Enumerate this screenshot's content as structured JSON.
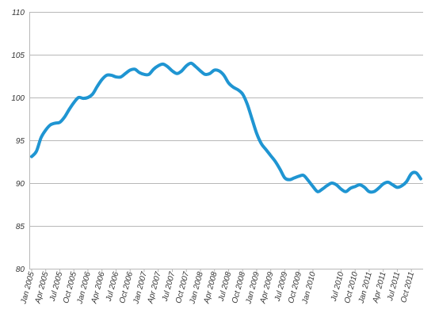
{
  "chart_data": {
    "type": "line",
    "title": "",
    "xlabel": "",
    "ylabel": "",
    "ylim": [
      80,
      110
    ],
    "yticks": [
      80,
      85,
      90,
      95,
      100,
      105,
      110
    ],
    "grid": true,
    "legend": "none",
    "colors": {
      "line": "#1f95d2",
      "grid": "#b8b8b8",
      "text": "#333333"
    },
    "x": [
      "Jan 2005",
      "Feb 2005",
      "Mar 2005",
      "Apr 2005",
      "May 2005",
      "Jun 2005",
      "Jul 2005",
      "Aug 2005",
      "Sep 2005",
      "Oct 2005",
      "Nov 2005",
      "Dec 2005",
      "Jan 2006",
      "Feb 2006",
      "Mar 2006",
      "Apr 2006",
      "May 2006",
      "Jun 2006",
      "Jul 2006",
      "Aug 2006",
      "Sep 2006",
      "Oct 2006",
      "Nov 2006",
      "Dec 2006",
      "Jan 2007",
      "Feb 2007",
      "Mar 2007",
      "Apr 2007",
      "May 2007",
      "Jun 2007",
      "Jul 2007",
      "Aug 2007",
      "Sep 2007",
      "Oct 2007",
      "Nov 2007",
      "Dec 2007",
      "Jan 2008",
      "Feb 2008",
      "Mar 2008",
      "Apr 2008",
      "May 2008",
      "Jun 2008",
      "Jul 2008",
      "Aug 2008",
      "Sep 2008",
      "Oct 2008",
      "Nov 2008",
      "Dec 2008",
      "Jan 2009",
      "Feb 2009",
      "Mar 2009",
      "Apr 2009",
      "May 2009",
      "Jun 2009",
      "Jul 2009",
      "Aug 2009",
      "Sep 2009",
      "Oct 2009",
      "Nov 2009",
      "Dec 2009",
      "Jan 2010",
      "Feb 2010",
      "Mar 2010",
      "Apr 2010",
      "May 2010",
      "Jun 2010",
      "Jul 2010",
      "Aug 2010",
      "Sep 2010",
      "Oct 2010",
      "Nov 2010",
      "Dec 2010",
      "Jan 2011",
      "Feb 2011",
      "Mar 2011",
      "Apr 2011",
      "May 2011",
      "Jun 2011",
      "Jul 2011",
      "Aug 2011",
      "Sep 2011",
      "Oct 2011",
      "Nov 2011",
      "Dec 2011"
    ],
    "xtick_labels": [
      "Jan 2005",
      "Apr 2005",
      "Jul 2005",
      "Oct 2005",
      "Jan 2006",
      "Apr 2006",
      "Jul 2006",
      "Oct 2006",
      "Jan 2007",
      "Apr 2007",
      "Jul 2007",
      "Oct 2007",
      "Jan 2008",
      "Apr 2008",
      "Jul 2008",
      "Oct 2008",
      "Jan 2009",
      "Apr 2009",
      "Jul 2009",
      "Oct 2009",
      "Jan 2010",
      "Jul 2010",
      "Oct 2010",
      "Jan 2011",
      "Apr 2011",
      "Jul 2011",
      "Oct 2011"
    ],
    "series": [
      {
        "values": [
          93.1,
          93.7,
          95.3,
          96.2,
          96.8,
          97.0,
          97.1,
          97.7,
          98.6,
          99.4,
          100.0,
          99.9,
          100.0,
          100.4,
          101.3,
          102.1,
          102.6,
          102.6,
          102.4,
          102.4,
          102.8,
          103.2,
          103.3,
          102.9,
          102.7,
          102.7,
          103.3,
          103.7,
          103.9,
          103.6,
          103.1,
          102.8,
          103.1,
          103.7,
          104.0,
          103.6,
          103.1,
          102.7,
          102.8,
          103.2,
          103.1,
          102.6,
          101.7,
          101.2,
          100.9,
          100.4,
          99.2,
          97.5,
          95.8,
          94.6,
          93.9,
          93.2,
          92.5,
          91.6,
          90.6,
          90.4,
          90.6,
          90.8,
          90.9,
          90.3,
          89.6,
          89.0,
          89.3,
          89.7,
          90.0,
          89.8,
          89.3,
          89.0,
          89.4,
          89.6,
          89.8,
          89.5,
          89.0,
          89.0,
          89.4,
          89.9,
          90.1,
          89.8,
          89.5,
          89.7,
          90.2,
          91.1,
          91.2,
          90.5
        ]
      }
    ]
  }
}
